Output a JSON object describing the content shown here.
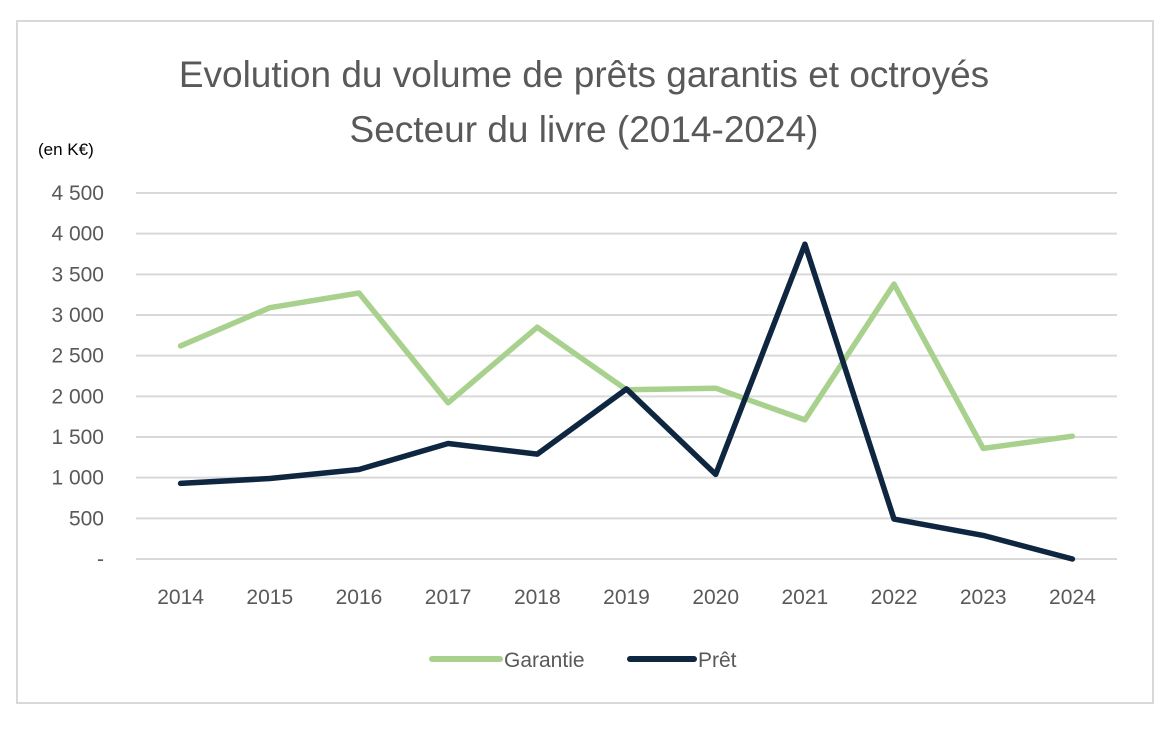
{
  "chart_data": {
    "type": "line",
    "title": "Evolution du volume de prêts garantis et octroyés",
    "subtitle": "Secteur du livre (2014-2024)",
    "unit_label": "(en K€)",
    "x": [
      "2014",
      "2015",
      "2016",
      "2017",
      "2018",
      "2019",
      "2020",
      "2021",
      "2022",
      "2023",
      "2024"
    ],
    "yticks": [
      {
        "value": 0,
        "label": "-"
      },
      {
        "value": 500,
        "label": "500"
      },
      {
        "value": 1000,
        "label": "1 000"
      },
      {
        "value": 1500,
        "label": "1 500"
      },
      {
        "value": 2000,
        "label": "2 000"
      },
      {
        "value": 2500,
        "label": "2 500"
      },
      {
        "value": 3000,
        "label": "3 000"
      },
      {
        "value": 3500,
        "label": "3 500"
      },
      {
        "value": 4000,
        "label": "4 000"
      },
      {
        "value": 4500,
        "label": "4 500"
      }
    ],
    "ylim": [
      0,
      4500
    ],
    "grid": true,
    "legend_position": "bottom",
    "series": [
      {
        "name": "Garantie",
        "color": "#a9d18e",
        "values": [
          2620,
          3090,
          3270,
          1920,
          2850,
          2080,
          2100,
          1710,
          3380,
          1360,
          1510
        ]
      },
      {
        "name": "Prêt",
        "color": "#0f2640",
        "values": [
          930,
          990,
          1100,
          1420,
          1290,
          2090,
          1040,
          3870,
          490,
          290,
          0
        ]
      }
    ]
  }
}
